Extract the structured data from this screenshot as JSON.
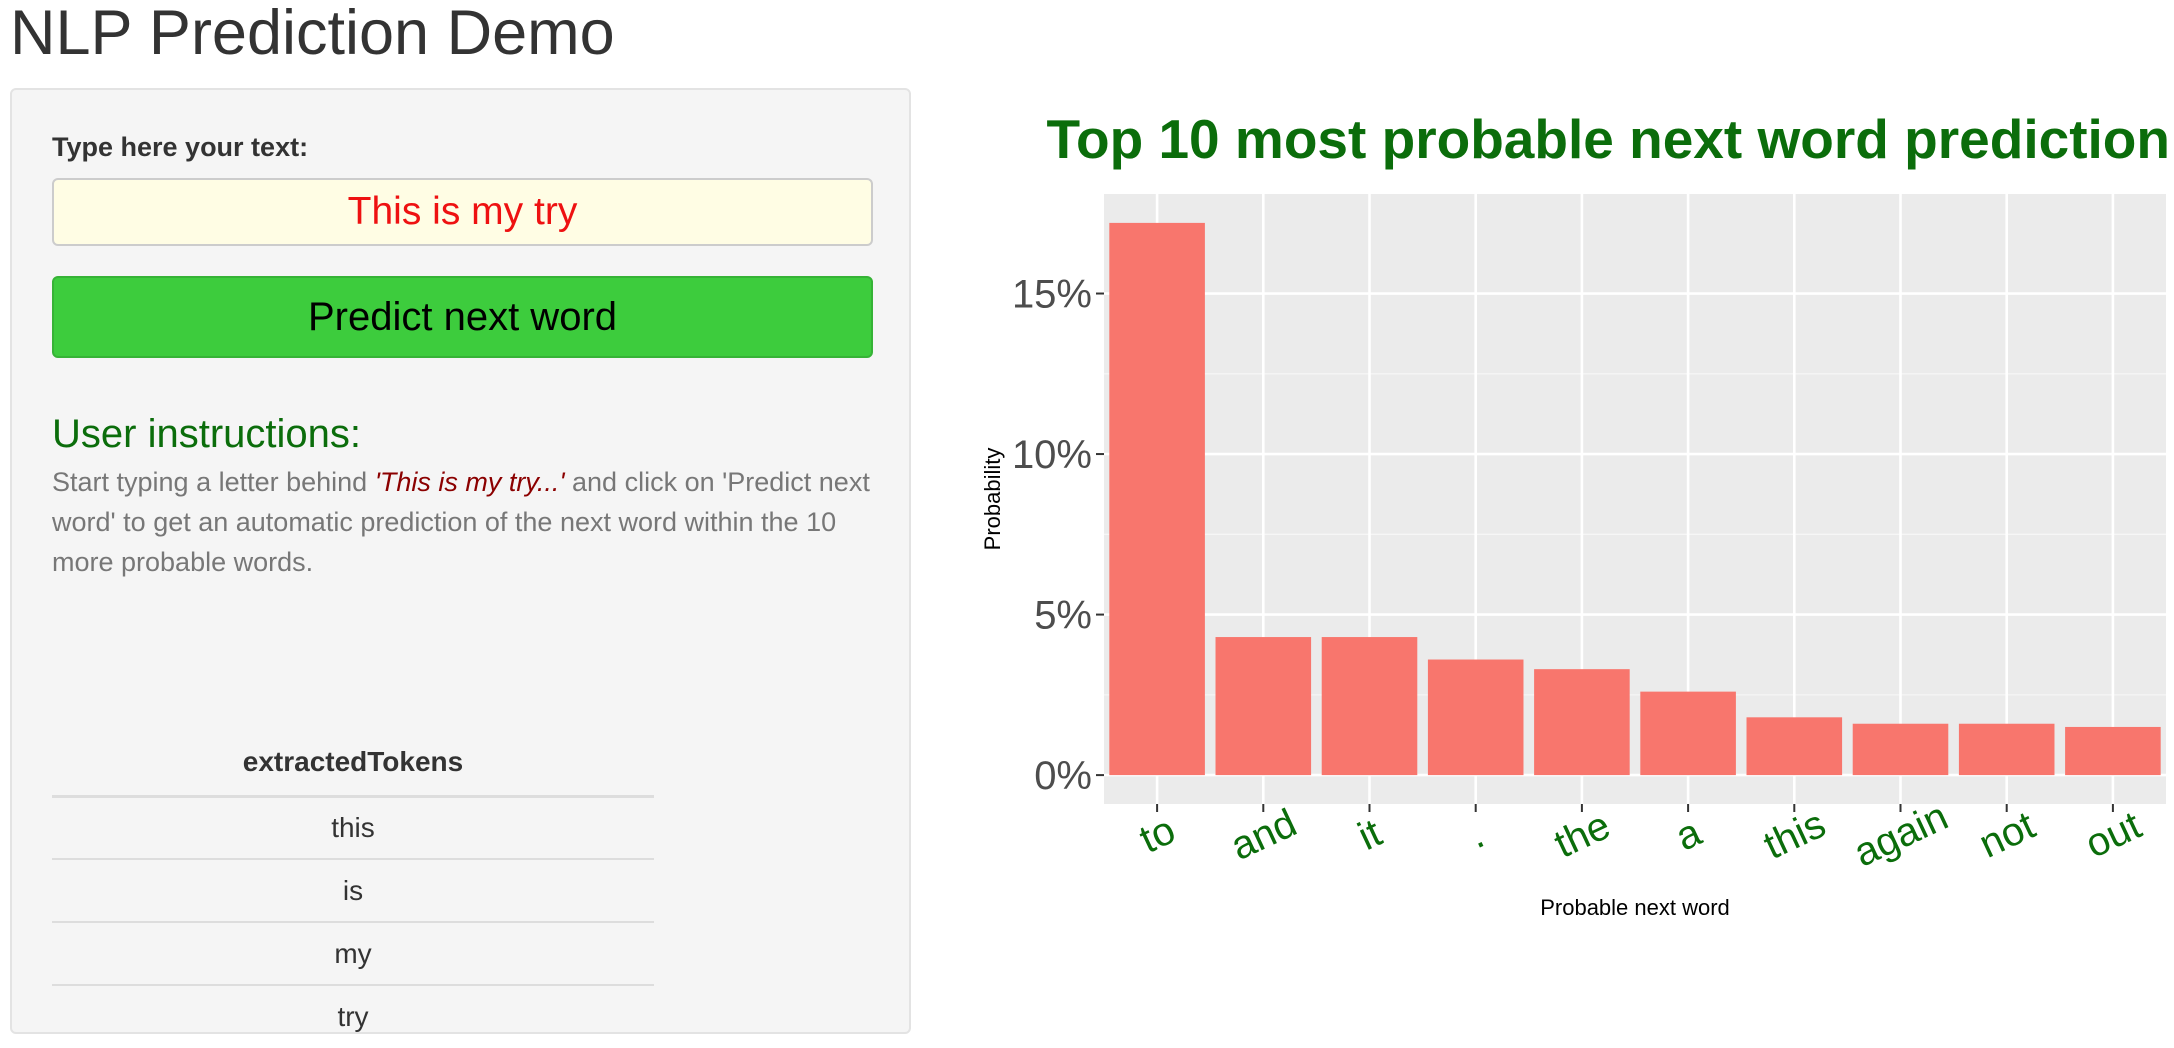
{
  "page": {
    "title": "NLP Prediction Demo"
  },
  "sidebar": {
    "input_label": "Type here your text:",
    "input_value": "This is my try",
    "predict_button_label": "Predict next word",
    "instructions_heading": "User instructions:",
    "instructions_text_before": "Start typing a letter behind ",
    "instructions_quote": "'This is my try...'",
    "instructions_text_after": " and click on 'Predict next word' to get an automatic prediction of the next word within the 10 more probable words.",
    "tokens_table": {
      "header": "extractedTokens",
      "rows": [
        "this",
        "is",
        "my",
        "try"
      ]
    }
  },
  "colors": {
    "bar_fill": "#f8766d",
    "title_green": "#0b6d0b",
    "button_green": "#3dcc3d",
    "input_text_red": "#ee1111",
    "plot_background": "#ebebeb"
  },
  "chart_data": {
    "type": "bar",
    "title": "Top 10 most probable next word prediction",
    "xlabel": "Probable next word",
    "ylabel": "Probability",
    "categories": [
      "to",
      "and",
      "it",
      ".",
      "the",
      "a",
      "this",
      "again",
      "not",
      "out"
    ],
    "values": [
      0.172,
      0.043,
      0.043,
      0.036,
      0.033,
      0.026,
      0.018,
      0.016,
      0.016,
      0.015
    ],
    "ylim": [
      -0.009,
      0.181
    ],
    "yticks": [
      0,
      0.05,
      0.1,
      0.15
    ],
    "ytick_labels": [
      "0%",
      "5%",
      "10%",
      "15%"
    ],
    "grid": true,
    "legend": "none"
  }
}
